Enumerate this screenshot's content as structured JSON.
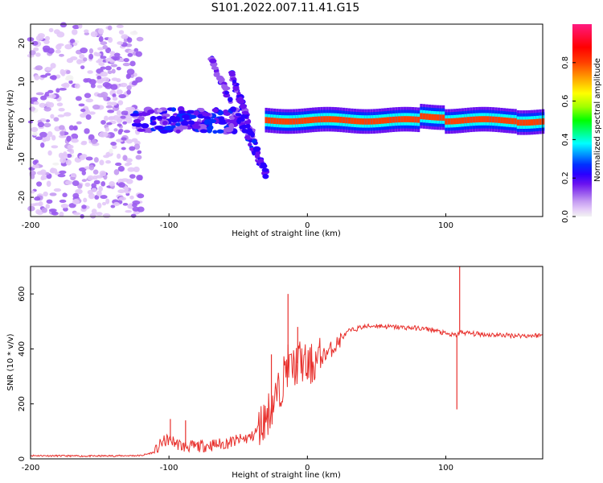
{
  "title": "S101.2022.007.11.41.G15",
  "colors": {
    "axis": "#000000",
    "snr_line": "#e8302c",
    "colormap": [
      "#f2f2f2",
      "#e2c8f8",
      "#c49af2",
      "#9b5cee",
      "#6a12f0",
      "#2a00ff",
      "#0030ff",
      "#00a0ff",
      "#00ffff",
      "#00ff80",
      "#00ff00",
      "#a0ff00",
      "#ffff00",
      "#ffa000",
      "#ff4000",
      "#ff0000",
      "#ff1a80"
    ]
  },
  "chart_data": [
    {
      "type": "heatmap",
      "title": "S101.2022.007.11.41.G15",
      "xlabel": "Height of straight line (km)",
      "ylabel": "Frequency (Hz)",
      "xlim": [
        -200,
        170
      ],
      "ylim": [
        -25,
        25
      ],
      "xticks": [
        -200,
        -100,
        0,
        100
      ],
      "yticks": [
        -20,
        -10,
        0,
        10,
        20
      ],
      "colorbar": {
        "label": "Normalized spectral amplitude",
        "range": [
          0,
          1
        ],
        "ticks": [
          "0.0",
          "0.2",
          "0.4",
          "0.6",
          "0.8"
        ]
      },
      "features": [
        {
          "x": [
            -200,
            -120
          ],
          "y": [
            -25,
            25
          ],
          "amplitude": 0.05
        },
        {
          "x": [
            -125,
            -50
          ],
          "y": [
            -3,
            3
          ],
          "amplitude": 0.35
        },
        {
          "x": [
            -70,
            -30
          ],
          "y": [
            16,
            -14
          ],
          "amplitude": 0.3
        },
        {
          "x": [
            -55,
            -30
          ],
          "y": [
            12,
            -14
          ],
          "amplitude": 0.3
        },
        {
          "x": [
            -30,
            170
          ],
          "y": [
            -1,
            1
          ],
          "amplitude": 0.9
        }
      ]
    },
    {
      "type": "line",
      "xlabel": "Height of straight line (km)",
      "ylabel": "SNR (10 * v/v)",
      "xlim": [
        -200,
        170
      ],
      "ylim": [
        0,
        700
      ],
      "xticks": [
        -200,
        -100,
        0,
        100
      ],
      "yticks": [
        0,
        200,
        400,
        600
      ],
      "series": [
        {
          "x": [
            -200,
            -160,
            -120,
            -110,
            -105,
            -100,
            -90,
            -80,
            -60,
            -40,
            -30,
            -20,
            -15,
            -10,
            -5,
            0,
            10,
            20,
            25,
            30,
            40,
            50,
            60,
            70,
            80,
            90,
            100,
            105,
            108,
            110,
            112,
            120,
            140,
            160,
            170
          ],
          "y": [
            12,
            10,
            12,
            25,
            60,
            70,
            45,
            45,
            55,
            80,
            150,
            250,
            340,
            330,
            360,
            330,
            370,
            410,
            440,
            465,
            480,
            485,
            480,
            478,
            475,
            470,
            455,
            450,
            450,
            460,
            460,
            455,
            450,
            448,
            450
          ],
          "spikes": [
            {
              "x": -99,
              "y": 145
            },
            {
              "x": -88,
              "y": 140
            },
            {
              "x": -26,
              "y": 380
            },
            {
              "x": -14,
              "y": 600
            },
            {
              "x": -7,
              "y": 480
            },
            {
              "x": 108,
              "y": 180
            },
            {
              "x": 110,
              "y": 700
            }
          ]
        }
      ]
    }
  ]
}
